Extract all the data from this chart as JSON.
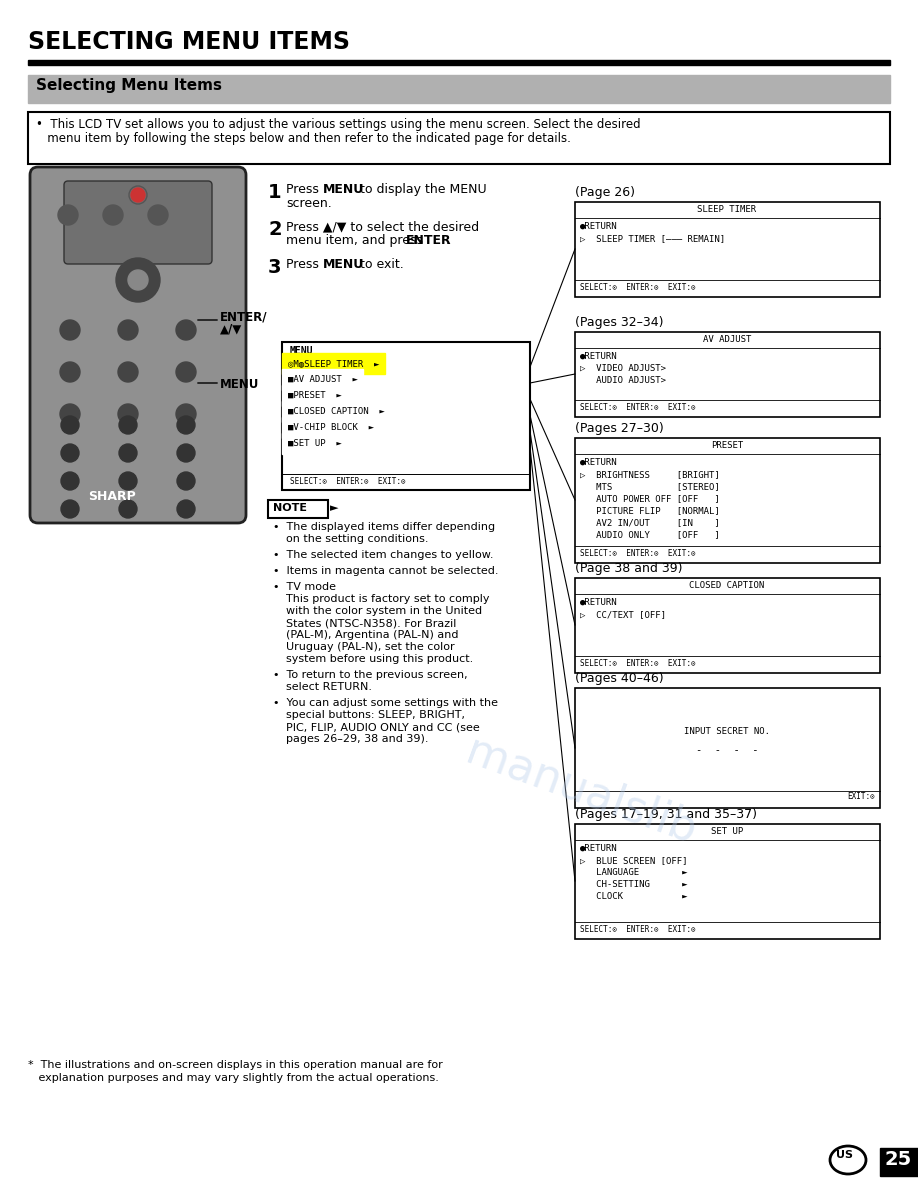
{
  "title": "SELECTING MENU ITEMS",
  "subtitle": "Selecting Menu Items",
  "intro_line1": "•  This LCD TV set allows you to adjust the various settings using the menu screen. Select the desired",
  "intro_line2": "   menu item by following the steps below and then refer to the indicated page for details.",
  "page_num": "25",
  "watermark_color": "#b0c8e8",
  "bg_color": "#ffffff",
  "header_bg": "#b0b0b0",
  "screen_page26_label": "(Page 26)",
  "screen_page26_title": "SLEEP TIMER",
  "screen_page26_lines": [
    "●RETURN",
    "▷  SLEEP TIMER [——— REMAIN]"
  ],
  "screen_page3234_label": "(Pages 32–34)",
  "screen_page3234_title": "AV ADJUST",
  "screen_page3234_lines": [
    "●RETURN",
    "▷  VIDEO ADJUST>",
    "   AUDIO ADJUST>"
  ],
  "screen_page2730_label": "(Pages 27–30)",
  "screen_page2730_title": "PRESET",
  "screen_page2730_lines": [
    "●RETURN",
    "▷  BRIGHTNESS     [BRIGHT]",
    "   MTS            [STEREO]",
    "   AUTO POWER OFF [OFF   ]",
    "   PICTURE FLIP   [NORMAL]",
    "   AV2 IN/OUT     [IN    ]",
    "   AUDIO ONLY     [OFF   ]"
  ],
  "screen_page3839_label": "(Page 38 and 39)",
  "screen_page3839_title": "CLOSED CAPTION",
  "screen_page3839_lines": [
    "●RETURN",
    "▷  CC/TEXT [OFF]"
  ],
  "screen_page4046_label": "(Pages 40–46)",
  "screen_page4046_line1": "INPUT SECRET NO.",
  "screen_page4046_line2": "-  -  -  -",
  "screen_page1719_label": "(Pages 17–19, 31 and 35–37)",
  "screen_page1719_title": "SET UP",
  "screen_page1719_lines": [
    "●RETURN",
    "▷  BLUE SCREEN [OFF]",
    "   LANGUAGE        ►",
    "   CH-SETTING      ►",
    "   CLOCK           ►"
  ],
  "menu_screen_title": "MENU",
  "menu_screen_items": [
    [
      "◎M◍SLEEP TIMER",
      true
    ],
    [
      "■AV ADJUST",
      false
    ],
    [
      "■PRESET",
      false
    ],
    [
      "■CLOSED CAPTION",
      false
    ],
    [
      "■V-CHIP BLOCK",
      false
    ],
    [
      "■SET UP",
      false
    ]
  ],
  "note_bullets": [
    "The displayed items differ depending\non the setting conditions.",
    "The selected item changes to yellow.",
    "Items in magenta cannot be selected.",
    "TV mode\nThis product is factory set to comply\nwith the color system in the United\nStates (NTSC-N358). For Brazil\n(PAL-M), Argentina (PAL-N) and\nUruguay (PAL-N), set the color\nsystem before using this product.",
    "To return to the previous screen,\nselect RETURN.",
    "You can adjust some settings with the\nspecial buttons: SLEEP, BRIGHT,\nPIC, FLIP, AUDIO ONLY and CC (see\npages 26–29, 38 and 39)."
  ],
  "footnote_line1": "*  The illustrations and on-screen displays in this operation manual are for",
  "footnote_line2": "   explanation purposes and may vary slightly from the actual operations."
}
